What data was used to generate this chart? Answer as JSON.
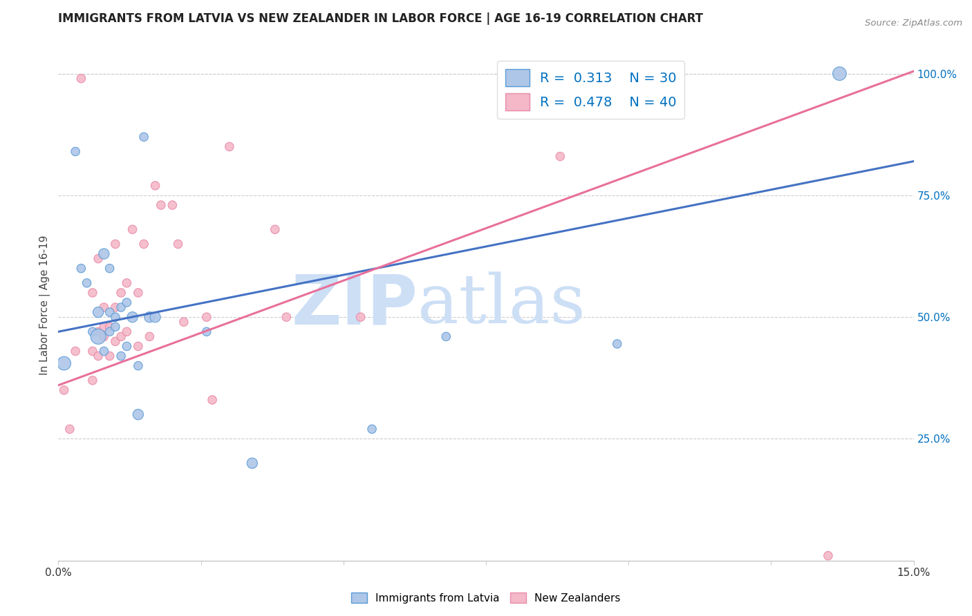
{
  "title": "IMMIGRANTS FROM LATVIA VS NEW ZEALANDER IN LABOR FORCE | AGE 16-19 CORRELATION CHART",
  "source": "Source: ZipAtlas.com",
  "ylabel_left": "In Labor Force | Age 16-19",
  "xlim": [
    0.0,
    0.15
  ],
  "ylim": [
    0.0,
    1.05
  ],
  "xtick_positions": [
    0.0,
    0.025,
    0.05,
    0.075,
    0.1,
    0.125,
    0.15
  ],
  "xticklabels": [
    "0.0%",
    "",
    "",
    "",
    "",
    "",
    "15.0%"
  ],
  "yticks_right": [
    0.25,
    0.5,
    0.75,
    1.0
  ],
  "ytick_right_labels": [
    "25.0%",
    "50.0%",
    "75.0%",
    "100.0%"
  ],
  "blue_color": "#aec6e8",
  "blue_edge_color": "#5b9bd5",
  "blue_line_color": "#4472c4",
  "pink_color": "#f4b8c8",
  "pink_edge_color": "#e88aaa",
  "pink_line_color": "#e8709a",
  "blue_R": 0.313,
  "blue_N": 30,
  "pink_R": 0.478,
  "pink_N": 40,
  "legend_color": "#0070c0",
  "watermark_zip": "ZIP",
  "watermark_atlas": "atlas",
  "watermark_color": "#ccdff5",
  "grid_color": "#cccccc",
  "blue_scatter_x": [
    0.001,
    0.003,
    0.004,
    0.005,
    0.006,
    0.007,
    0.007,
    0.008,
    0.008,
    0.009,
    0.009,
    0.009,
    0.01,
    0.01,
    0.011,
    0.011,
    0.012,
    0.012,
    0.013,
    0.014,
    0.014,
    0.015,
    0.016,
    0.017,
    0.026,
    0.034,
    0.055,
    0.068,
    0.098,
    0.137
  ],
  "blue_scatter_y": [
    0.405,
    0.84,
    0.6,
    0.57,
    0.47,
    0.46,
    0.51,
    0.43,
    0.63,
    0.47,
    0.51,
    0.6,
    0.48,
    0.5,
    0.42,
    0.52,
    0.44,
    0.53,
    0.5,
    0.3,
    0.4,
    0.87,
    0.5,
    0.5,
    0.47,
    0.2,
    0.27,
    0.46,
    0.445,
    1.0
  ],
  "blue_sizes": [
    200,
    80,
    80,
    80,
    80,
    250,
    120,
    80,
    120,
    80,
    80,
    80,
    80,
    80,
    80,
    80,
    80,
    80,
    120,
    120,
    80,
    80,
    120,
    120,
    80,
    120,
    80,
    80,
    80,
    200
  ],
  "pink_scatter_x": [
    0.001,
    0.002,
    0.003,
    0.004,
    0.006,
    0.006,
    0.006,
    0.007,
    0.007,
    0.007,
    0.008,
    0.008,
    0.008,
    0.009,
    0.009,
    0.01,
    0.01,
    0.01,
    0.011,
    0.011,
    0.012,
    0.012,
    0.013,
    0.014,
    0.014,
    0.015,
    0.016,
    0.017,
    0.018,
    0.02,
    0.021,
    0.022,
    0.026,
    0.027,
    0.03,
    0.038,
    0.04,
    0.053,
    0.088,
    0.135
  ],
  "pink_scatter_y": [
    0.35,
    0.27,
    0.43,
    0.99,
    0.37,
    0.43,
    0.55,
    0.42,
    0.47,
    0.62,
    0.46,
    0.48,
    0.52,
    0.42,
    0.48,
    0.45,
    0.52,
    0.65,
    0.46,
    0.55,
    0.47,
    0.57,
    0.68,
    0.44,
    0.55,
    0.65,
    0.46,
    0.77,
    0.73,
    0.73,
    0.65,
    0.49,
    0.5,
    0.33,
    0.85,
    0.68,
    0.5,
    0.5,
    0.83,
    0.01
  ],
  "pink_sizes": [
    80,
    80,
    80,
    80,
    80,
    80,
    80,
    80,
    80,
    80,
    80,
    80,
    80,
    80,
    80,
    80,
    80,
    80,
    80,
    80,
    80,
    80,
    80,
    80,
    80,
    80,
    80,
    80,
    80,
    80,
    80,
    80,
    80,
    80,
    80,
    80,
    80,
    80,
    80,
    80
  ],
  "blue_trend_x": [
    0.0,
    0.15
  ],
  "blue_trend_y": [
    0.47,
    0.82
  ],
  "pink_trend_x": [
    0.0,
    0.15
  ],
  "pink_trend_y": [
    0.36,
    1.005
  ]
}
